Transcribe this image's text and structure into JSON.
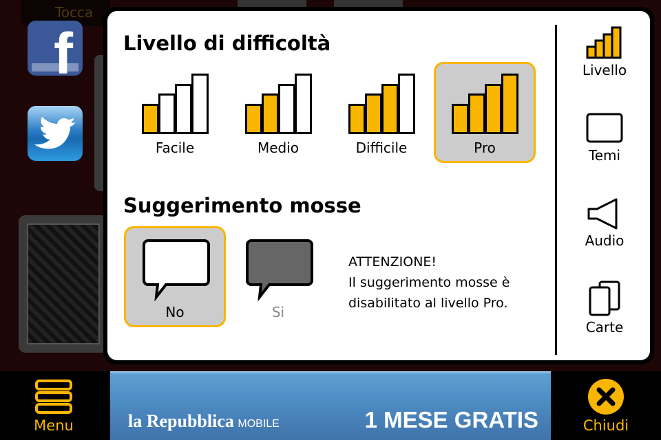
{
  "background": {
    "tocca_label": "Tocca"
  },
  "difficulty": {
    "title": "Livello di difficoltà",
    "options": [
      {
        "label": "Facile",
        "level": 1,
        "selected": false
      },
      {
        "label": "Medio",
        "level": 2,
        "selected": false
      },
      {
        "label": "Difficile",
        "level": 3,
        "selected": false
      },
      {
        "label": "Pro",
        "level": 4,
        "selected": true
      }
    ]
  },
  "hints": {
    "title": "Suggerimento mosse",
    "options": [
      {
        "label": "No",
        "selected": true
      },
      {
        "label": "Si",
        "selected": false,
        "disabled": true
      }
    ],
    "warning": [
      "ATTENZIONE!",
      "Il suggerimento mosse è",
      "disabilitato al livello Pro."
    ]
  },
  "nav": [
    {
      "label": "Livello",
      "icon": "signal-bars-icon"
    },
    {
      "label": "Temi",
      "icon": "rectangle-icon"
    },
    {
      "label": "Audio",
      "icon": "speaker-icon"
    },
    {
      "label": "Carte",
      "icon": "cards-icon"
    }
  ],
  "bottom": {
    "menu_label": "Menu",
    "close_label": "Chiudi",
    "ad": {
      "brand": "la Repubblica",
      "brand_suffix": "MOBILE",
      "promo": "1 MESE GRATIS"
    }
  },
  "colors": {
    "accent": "#f8b600",
    "selected_bg": "#cccccc"
  }
}
